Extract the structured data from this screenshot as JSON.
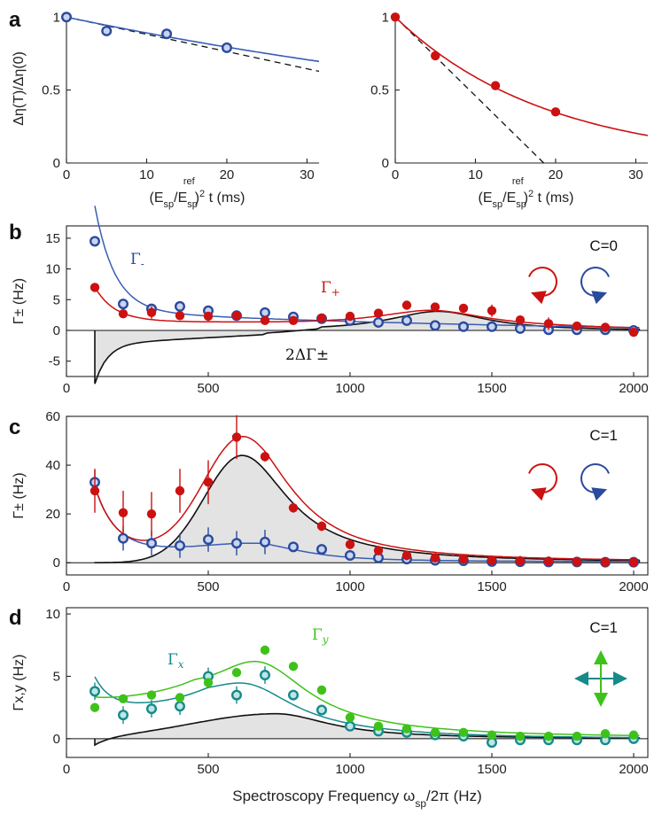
{
  "colors": {
    "red": "#cc1111",
    "blue": "#2a4a9e",
    "blue_line": "#3a5db5",
    "blue_fill": "#c9d4ef",
    "teal": "#178a8a",
    "green": "#3ec21a",
    "gray_fill": "#e3e3e3",
    "black": "#111111"
  },
  "chart_data": [
    {
      "id": "a-left",
      "panel_label": "a",
      "type": "scatter",
      "xlabel": "(E_sp/E_sp^ref)^2 t (ms)",
      "xlabel_main": "(E",
      "xlabel_sub1": "sp",
      "xlabel_mid": "/E",
      "xlabel_sub2": "sp",
      "xlabel_sup2": "ref",
      "xlabel_sq": "2",
      "xlabel_end": " t (ms)",
      "ylabel": "Δη(T)/Δη(0)",
      "xlim": [
        0,
        31.5
      ],
      "ylim": [
        0,
        1.02
      ],
      "xticks": [
        "0",
        "10",
        "20",
        "30"
      ],
      "xtick_values": [
        0,
        10,
        20,
        30
      ],
      "yticks": [
        "0",
        "0.5",
        "1"
      ],
      "ytick_values": [
        0,
        0.5,
        1
      ],
      "points": {
        "x": [
          0,
          5,
          12.5,
          20
        ],
        "y": [
          1.0,
          0.905,
          0.885,
          0.79
        ]
      },
      "marker": "open-blue",
      "fit": {
        "type": "exp",
        "rate": 0.0115
      },
      "tangent": {
        "slope": -0.0118
      }
    },
    {
      "id": "a-right",
      "type": "scatter",
      "xlabel": "(E_sp/E_sp^ref)^2 t (ms)",
      "xlabel_main": "(E",
      "xlabel_sub1": "sp",
      "xlabel_mid": "/E",
      "xlabel_sub2": "sp",
      "xlabel_sup2": "ref",
      "xlabel_sq": "2",
      "xlabel_end": " t (ms)",
      "xlim": [
        0,
        31.5
      ],
      "ylim": [
        0,
        1.02
      ],
      "xticks": [
        "0",
        "10",
        "20",
        "30"
      ],
      "xtick_values": [
        0,
        10,
        20,
        30
      ],
      "yticks": [
        "0",
        "0.5",
        "1"
      ],
      "ytick_values": [
        0,
        0.5,
        1
      ],
      "points": {
        "x": [
          0,
          5,
          12.5,
          20
        ],
        "y": [
          1.0,
          0.735,
          0.53,
          0.35
        ]
      },
      "marker": "filled-red",
      "fit": {
        "type": "exp",
        "rate": 0.053
      },
      "tangent": {
        "slope": -0.054
      }
    },
    {
      "id": "b",
      "panel_label": "b",
      "type": "line",
      "annotation": "C=0",
      "ylabel": "Γ± (Hz)",
      "xlim": [
        0,
        2050
      ],
      "ylim": [
        -7.5,
        17
      ],
      "xticks": [
        "0",
        "500",
        "1000",
        "1500",
        "2000"
      ],
      "xtick_values": [
        0,
        500,
        1000,
        1500,
        2000
      ],
      "yticks": [
        "-5",
        "0",
        "5",
        "10",
        "15"
      ],
      "ytick_values": [
        -5,
        0,
        5,
        10,
        15
      ],
      "series": [
        {
          "name": "Γ-",
          "label": "Γ",
          "label_sub": "-",
          "marker": "open-blue",
          "x": [
            100,
            200,
            300,
            400,
            500,
            600,
            700,
            800,
            900,
            1000,
            1100,
            1200,
            1300,
            1400,
            1500,
            1600,
            1700,
            1800,
            1900,
            2000
          ],
          "y": [
            14.5,
            4.3,
            3.5,
            3.9,
            3.2,
            2.4,
            2.9,
            2.2,
            1.9,
            1.6,
            1.3,
            1.6,
            0.8,
            0.6,
            0.6,
            0.3,
            0.1,
            0.1,
            0.1,
            0.0
          ]
        },
        {
          "name": "Γ+",
          "label": "Γ",
          "label_sub": "+",
          "marker": "filled-red",
          "x": [
            100,
            200,
            300,
            400,
            500,
            600,
            700,
            800,
            900,
            1000,
            1100,
            1200,
            1300,
            1400,
            1500,
            1600,
            1700,
            1800,
            1900,
            2000
          ],
          "y": [
            7.0,
            2.7,
            2.9,
            2.4,
            2.3,
            2.4,
            1.6,
            1.6,
            2.0,
            2.3,
            2.8,
            4.1,
            3.8,
            3.6,
            3.2,
            1.7,
            1.1,
            0.7,
            0.5,
            -0.3
          ]
        }
      ],
      "difference_label": "2ΔΓ±"
    },
    {
      "id": "c",
      "panel_label": "c",
      "type": "line",
      "annotation": "C=1",
      "ylabel": "Γ± (Hz)",
      "xlim": [
        0,
        2050
      ],
      "ylim": [
        -5,
        60
      ],
      "xticks": [
        "0",
        "500",
        "1000",
        "1500",
        "2000"
      ],
      "xtick_values": [
        0,
        500,
        1000,
        1500,
        2000
      ],
      "yticks": [
        "0",
        "20",
        "40",
        "60"
      ],
      "ytick_values": [
        0,
        20,
        40,
        60
      ],
      "series": [
        {
          "name": "Γ-",
          "marker": "open-blue",
          "x": [
            100,
            200,
            300,
            400,
            500,
            600,
            700,
            800,
            900,
            1000,
            1100,
            1200,
            1300,
            1400,
            1500,
            1600,
            1700,
            1800,
            1900,
            2000
          ],
          "y": [
            33.0,
            10.0,
            8.0,
            7.0,
            9.5,
            8.0,
            8.5,
            6.5,
            5.5,
            3.0,
            2.0,
            1.5,
            1.0,
            0.8,
            0.5,
            0.4,
            0.3,
            0.3,
            0.2,
            0.2
          ]
        },
        {
          "name": "Γ+",
          "marker": "filled-red",
          "x": [
            100,
            200,
            300,
            400,
            500,
            600,
            700,
            800,
            900,
            1000,
            1100,
            1200,
            1300,
            1400,
            1500,
            1600,
            1700,
            1800,
            1900,
            2000
          ],
          "y": [
            29.5,
            20.5,
            20.0,
            29.5,
            33.0,
            51.5,
            43.5,
            22.5,
            15.0,
            7.5,
            5.0,
            3.0,
            2.0,
            1.5,
            1.0,
            0.8,
            0.6,
            0.4,
            0.3,
            0.3
          ]
        }
      ]
    },
    {
      "id": "d",
      "panel_label": "d",
      "type": "line",
      "annotation": "C=1",
      "ylabel": "Γx,y (Hz)",
      "xlabel": "Spectroscopy Frequency ωsp/2π (Hz)",
      "xlabel_main": "Spectroscopy Frequency ω",
      "xlabel_sub": "sp",
      "xlabel_end": "/2π (Hz)",
      "xlim": [
        0,
        2050
      ],
      "ylim": [
        -1.5,
        10.5
      ],
      "xticks": [
        "0",
        "500",
        "1000",
        "1500",
        "2000"
      ],
      "xtick_values": [
        0,
        500,
        1000,
        1500,
        2000
      ],
      "yticks": [
        "0",
        "5",
        "10"
      ],
      "ytick_values": [
        0,
        5,
        10
      ],
      "series": [
        {
          "name": "Γx",
          "label": "Γ",
          "label_sub": "x",
          "marker": "open-teal",
          "x": [
            100,
            200,
            300,
            400,
            500,
            600,
            700,
            800,
            900,
            1000,
            1100,
            1200,
            1300,
            1400,
            1500,
            1600,
            1700,
            1800,
            1900,
            2000
          ],
          "y": [
            3.8,
            1.9,
            2.4,
            2.6,
            5.0,
            3.5,
            5.1,
            3.5,
            2.3,
            1.0,
            0.6,
            0.5,
            0.3,
            0.2,
            -0.3,
            -0.1,
            -0.1,
            -0.1,
            -0.1,
            0.0
          ]
        },
        {
          "name": "Γy",
          "label": "Γ",
          "label_sub": "y",
          "marker": "filled-green",
          "x": [
            100,
            200,
            300,
            400,
            500,
            600,
            700,
            800,
            900,
            1000,
            1100,
            1200,
            1300,
            1400,
            1500,
            1600,
            1700,
            1800,
            1900,
            2000
          ],
          "y": [
            2.5,
            3.2,
            3.5,
            3.3,
            4.5,
            5.3,
            7.1,
            5.8,
            3.9,
            1.7,
            1.0,
            0.8,
            0.5,
            0.5,
            0.3,
            0.2,
            0.2,
            0.2,
            0.4,
            0.3
          ]
        }
      ]
    }
  ]
}
